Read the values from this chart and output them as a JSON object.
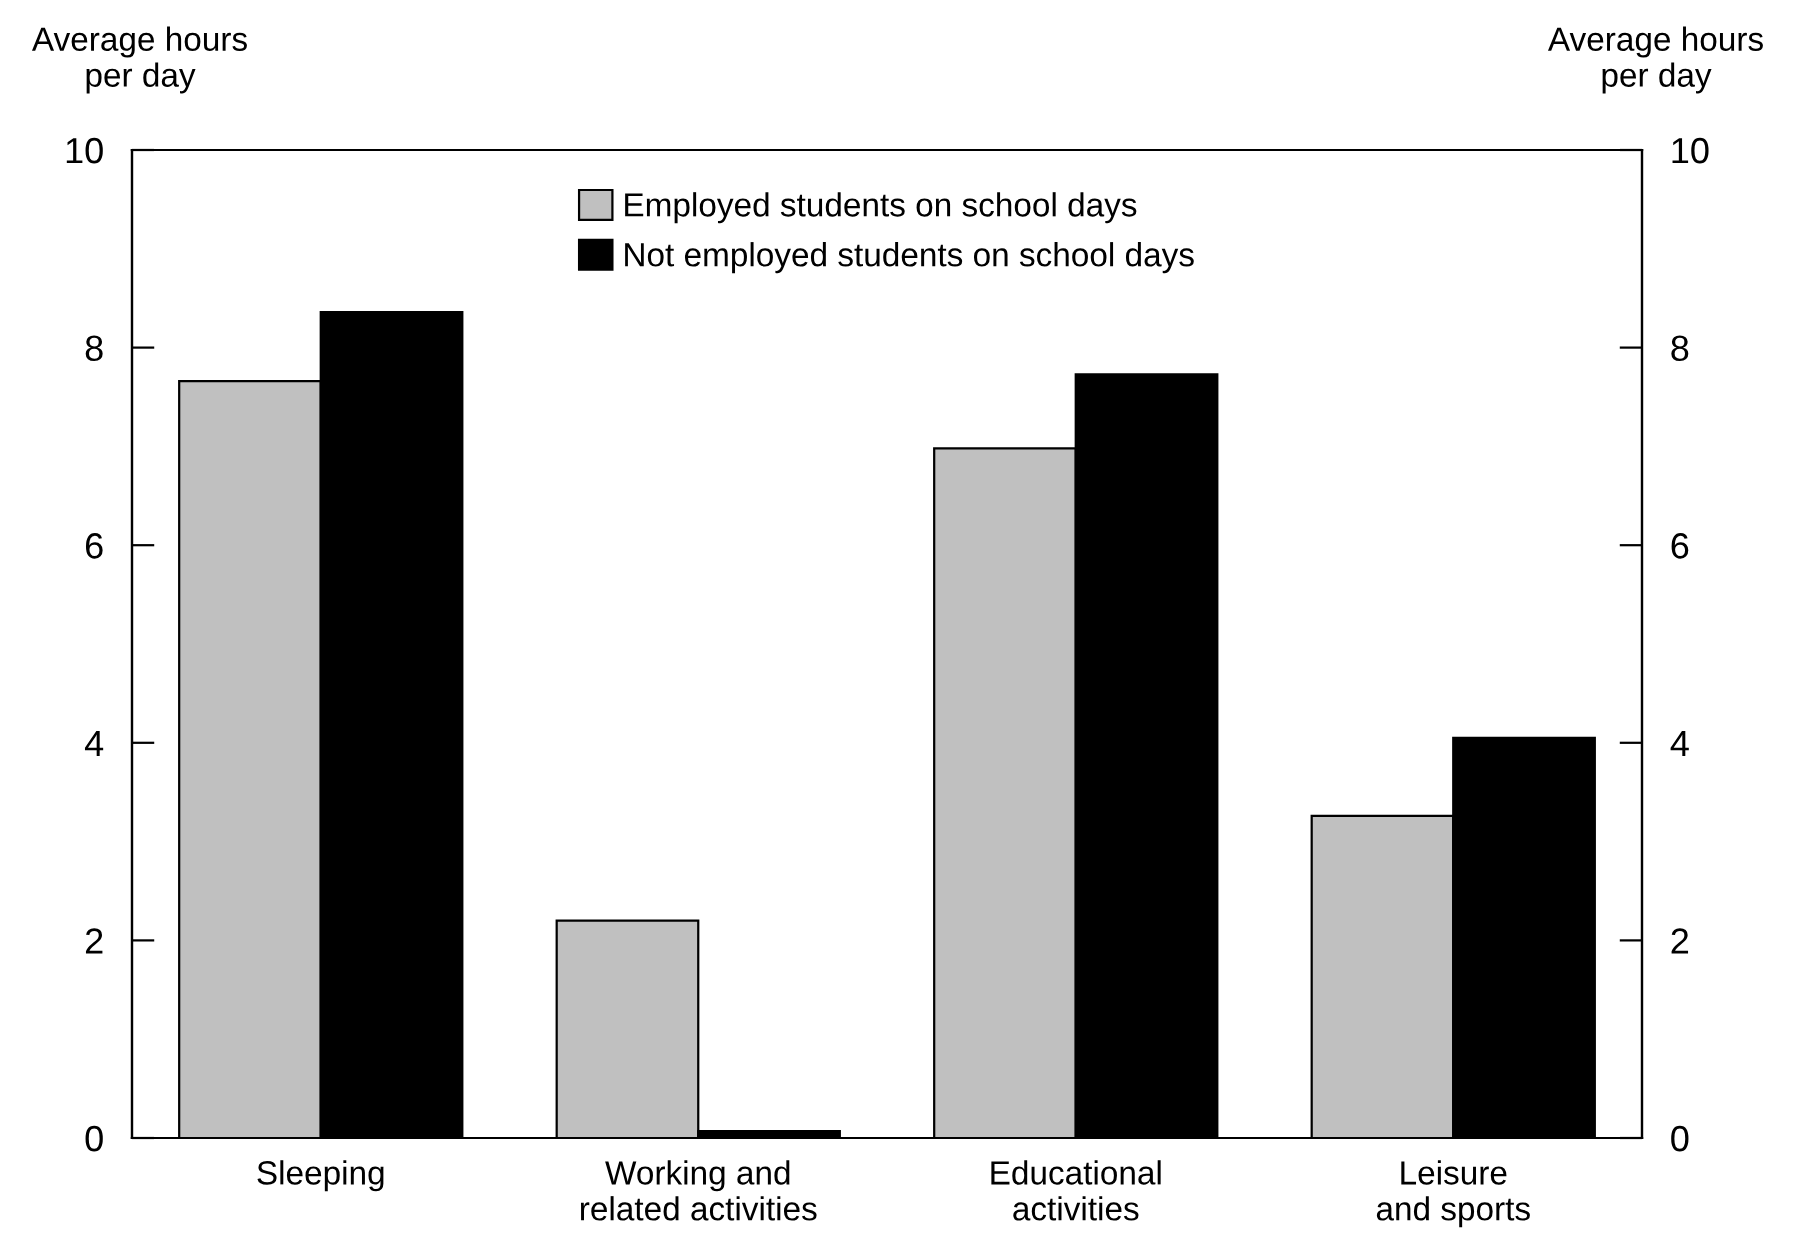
{
  "chart_data": {
    "type": "bar",
    "ylabel": "Average hours\nper day",
    "y2label": "Average hours\nper day",
    "categories": [
      "Sleeping",
      "Working and\nrelated activities",
      "Educational\nactivities",
      "Leisure\nand sports"
    ],
    "series": [
      {
        "name": "Employed students on school days",
        "color": "#c0c0c0",
        "values": [
          7.66,
          2.2,
          6.98,
          3.26
        ]
      },
      {
        "name": "Not employed students on school days",
        "color": "#000000",
        "values": [
          8.36,
          0.07,
          7.73,
          4.05
        ]
      }
    ],
    "ylim": [
      0,
      10
    ],
    "yticks": [
      0,
      2,
      4,
      6,
      8,
      10
    ],
    "y2lim": [
      0,
      10
    ],
    "y2ticks": [
      0,
      2,
      4,
      6,
      8,
      10
    ],
    "grid": false,
    "legend": "top"
  }
}
